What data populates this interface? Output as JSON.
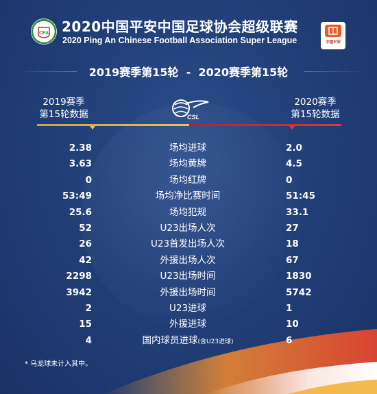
{
  "header": {
    "title_cn": "2020中国平安中国足球协会超级联赛",
    "title_en": "2020 Ping An Chinese Football Association Super League",
    "cfa_logo_text": "CFA",
    "sponsor_logo_text": "中国平安"
  },
  "season_title": {
    "left": "2019赛季第15轮",
    "separator": "-",
    "right": "2020赛季第15轮"
  },
  "columns": {
    "left_line1": "2019赛季",
    "left_line2": "第15轮数据",
    "right_line1": "2020赛季",
    "right_line2": "第15轮数据",
    "center_logo_text": "CSL"
  },
  "rows": [
    {
      "left": "2.38",
      "label": "场均进球",
      "right": "2.0"
    },
    {
      "left": "3.63",
      "label": "场均黄牌",
      "right": "4.5"
    },
    {
      "left": "0",
      "label": "场均红牌",
      "right": "0"
    },
    {
      "left": "53:49",
      "label": "场均净比赛时间",
      "right": "51:45"
    },
    {
      "left": "25.6",
      "label": "场均犯规",
      "right": "33.1"
    },
    {
      "left": "52",
      "label": "U23出场人次",
      "right": "27"
    },
    {
      "left": "26",
      "label": "U23首发出场人次",
      "right": "18"
    },
    {
      "left": "42",
      "label": "外援出场人次",
      "right": "67"
    },
    {
      "left": "2298",
      "label": "U23出场时间",
      "right": "1830"
    },
    {
      "left": "3942",
      "label": "外援出场时间",
      "right": "5742"
    },
    {
      "left": "2",
      "label": "U23进球",
      "right": "1"
    },
    {
      "left": "15",
      "label": "外援进球",
      "right": "10"
    },
    {
      "left": "4",
      "label": "国内球员进球",
      "label_note": "(含U23进球)",
      "right": "6"
    }
  ],
  "footnote": "* 乌龙球未计入其中。",
  "colors": {
    "background": "#213f78",
    "left_accent": "#e7c25a",
    "right_accent": "#d73b3b",
    "cfa_green": "#2e8b3d"
  }
}
